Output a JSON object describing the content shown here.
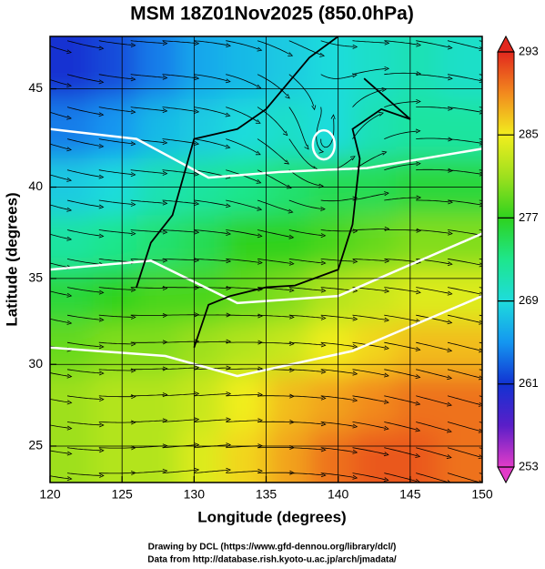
{
  "chart_data": {
    "type": "map",
    "title": "MSM 18Z01Nov2025 (850.0hPa)",
    "xlabel": "Longitude (degrees)",
    "ylabel": "Latitude  (degrees)",
    "footer": [
      "Drawing by DCL (https://www.gfd-dennou.org/library/dcl/)",
      "Data from http://database.rish.kyoto-u.ac.jp/arch/jmadata/"
    ],
    "projection": "mercator",
    "xlim": [
      120,
      150
    ],
    "xticks": [
      120,
      125,
      130,
      135,
      140,
      145,
      150
    ],
    "ylim": [
      22.7,
      47.5
    ],
    "yticks": [
      25,
      30,
      35,
      40,
      45
    ],
    "grid": true,
    "clim": [
      253,
      293
    ],
    "cticks": [
      253,
      261,
      269,
      277,
      285,
      293
    ],
    "colormap": [
      "#e23cc8",
      "#5a1ec8",
      "#1232d2",
      "#1496f0",
      "#1edcdc",
      "#1ee68c",
      "#2ed21e",
      "#9ee01e",
      "#f2ee1e",
      "#f28a1e",
      "#e2281e"
    ],
    "lons": [
      121.5,
      124.5,
      127.5,
      130.5,
      133.5,
      136.5,
      139.5,
      142.5,
      145.5,
      148.5
    ],
    "lats": [
      46,
      43,
      40,
      37,
      34,
      31,
      28,
      24
    ],
    "values": [
      [
        261,
        262,
        264,
        266,
        267,
        268,
        269,
        270,
        271,
        270
      ],
      [
        264,
        265,
        267,
        268,
        269,
        270,
        269,
        271,
        272,
        272
      ],
      [
        268,
        269,
        271,
        272,
        273,
        274,
        275,
        275,
        276,
        276
      ],
      [
        272,
        273,
        274,
        275,
        277,
        277,
        278,
        279,
        280,
        280
      ],
      [
        276,
        277,
        278,
        278,
        279,
        280,
        282,
        283,
        284,
        284
      ],
      [
        279,
        280,
        280,
        281,
        282,
        283,
        285,
        286,
        287,
        287
      ],
      [
        281,
        282,
        282,
        283,
        285,
        287,
        288,
        289,
        290,
        290
      ],
      [
        281,
        282,
        282,
        284,
        286,
        288,
        290,
        291,
        291,
        290
      ]
    ]
  }
}
